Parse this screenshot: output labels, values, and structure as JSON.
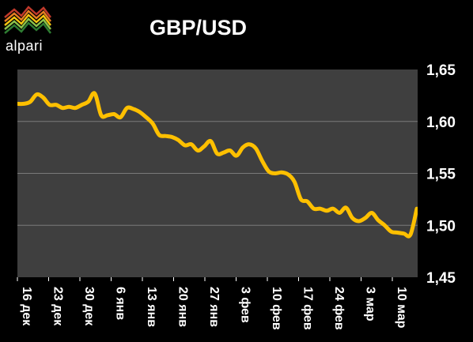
{
  "logo": {
    "text": "alpari"
  },
  "chart_data": {
    "type": "line",
    "title": "GBP/USD",
    "xlabel": "",
    "ylabel": "",
    "ylim": [
      1.45,
      1.65
    ],
    "yticks": [
      1.45,
      1.5,
      1.55,
      1.6,
      1.65
    ],
    "ytick_labels": [
      "1,45",
      "1,50",
      "1,55",
      "1,60",
      "1,65"
    ],
    "grid": true,
    "legend": "none",
    "colors": {
      "background": "#000000",
      "plot_area": "#3f3f3f",
      "line": "#ffc000",
      "grid": "#7a7a7a",
      "text": "#ffffff"
    },
    "xtick_labels": [
      "16 дек",
      "23 дек",
      "30 дек",
      "6 янв",
      "13 янв",
      "20 янв",
      "27 янв",
      "3 фев",
      "10 фев",
      "17 фев",
      "24 фев",
      "3 мар",
      "10 мар"
    ],
    "series": [
      {
        "values": [
          1.617,
          1.617,
          1.619,
          1.626,
          1.623,
          1.616,
          1.616,
          1.613,
          1.614,
          1.613,
          1.616,
          1.619,
          1.627,
          1.606,
          1.606,
          1.607,
          1.604,
          1.613,
          1.612,
          1.609,
          1.604,
          1.598,
          1.587,
          1.586,
          1.585,
          1.582,
          1.577,
          1.578,
          1.572,
          1.576,
          1.581,
          1.569,
          1.57,
          1.572,
          1.567,
          1.575,
          1.578,
          1.574,
          1.562,
          1.552,
          1.55,
          1.551,
          1.549,
          1.542,
          1.525,
          1.523,
          1.516,
          1.516,
          1.514,
          1.516,
          1.512,
          1.517,
          1.507,
          1.504,
          1.507,
          1.512,
          1.505,
          1.5,
          1.494,
          1.493,
          1.492,
          1.491,
          1.516
        ]
      }
    ]
  }
}
